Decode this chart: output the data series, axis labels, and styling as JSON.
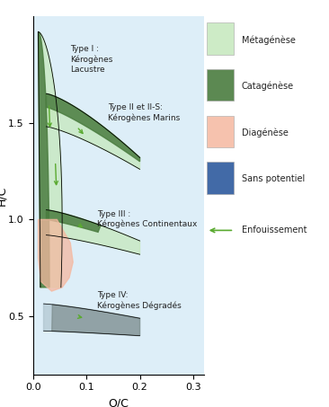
{
  "xlabel": "O/C",
  "ylabel": "H/C",
  "xlim": [
    0,
    0.32
  ],
  "ylim": [
    0.2,
    2.05
  ],
  "xticks": [
    0,
    0.1,
    0.2,
    0.3
  ],
  "yticks": [
    0.5,
    1.0,
    1.5
  ],
  "plot_bg": "#ddeef8",
  "metagenese_color": "#c5e8bc",
  "catagense_color": "#4a7c3f",
  "diagenese_color": "#f5b8a0",
  "sans_potentiel_color": "#2d5a9e",
  "gray_color": "#7a8a8a",
  "arrow_color": "#5aaa30",
  "type1_label": "Type I :\nKérogènes\nLacustre",
  "type2_label": "Type II et II-S:\nKérogènes Marins",
  "type3_label": "Type III :\nKérogènes Continentaux",
  "type4_label": "Type IV:\nKérogènes Dégradés",
  "legend_metagenese": "Métagénèse",
  "legend_catagense": "Catagénèse",
  "legend_diagenese": "Diagénèse",
  "legend_sans_potentiel": "Sans potentiel",
  "legend_enfouissement": "Enfouissement"
}
